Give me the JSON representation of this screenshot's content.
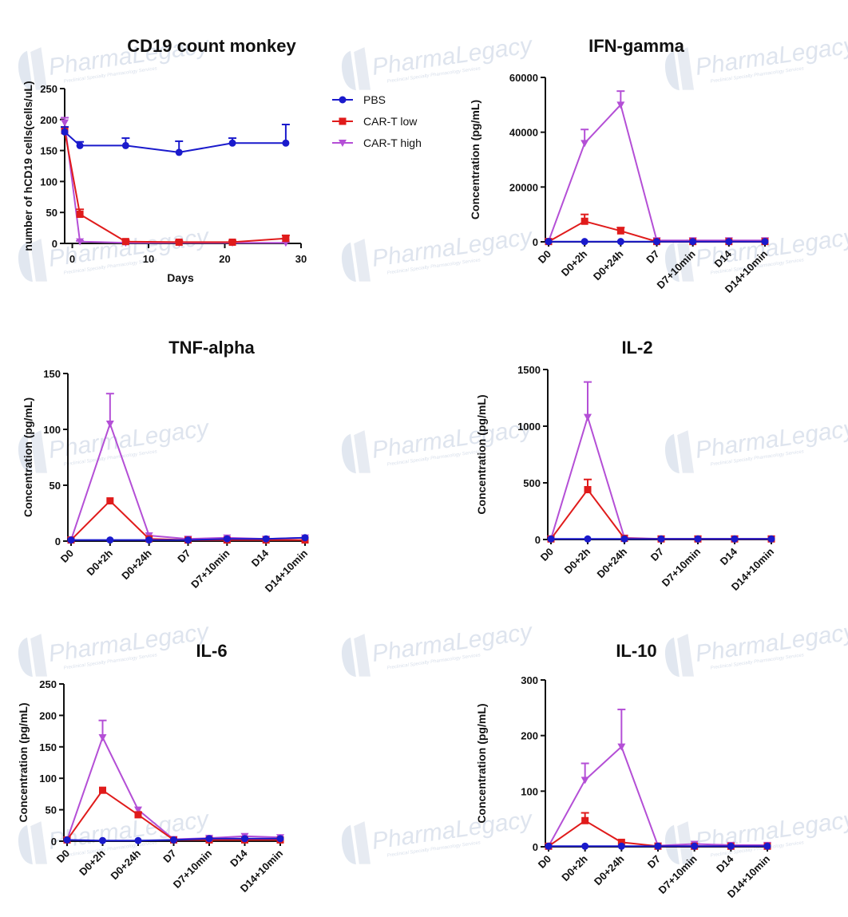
{
  "colors": {
    "PBS": "#1a1acc",
    "CAR-T low": "#e01b1b",
    "CAR-T high": "#b44fd6",
    "axis": "#111111",
    "watermark": "#c9d3e3"
  },
  "watermark": {
    "brand_a": "Pharma",
    "brand_b": "Legacy",
    "tagline": "Preclinical Specialty Pharmacology Services"
  },
  "legend": [
    "PBS",
    "CAR-T low",
    "CAR-T high"
  ],
  "chart_data": [
    {
      "type": "line",
      "title": "CD19 count monkey",
      "xlabel": "Days",
      "ylabel": "number of hCD19 cells(cells/uL)",
      "xlim": [
        -1,
        30
      ],
      "ylim": [
        0,
        250
      ],
      "xticks": [
        0,
        10,
        20,
        30
      ],
      "yticks": [
        0,
        50,
        100,
        150,
        200,
        250
      ],
      "x": [
        -1,
        1,
        7,
        14,
        21,
        28
      ],
      "series": [
        {
          "name": "PBS",
          "values": [
            180,
            158,
            158,
            147,
            162,
            162
          ],
          "err": [
            8,
            6,
            12,
            18,
            8,
            30
          ]
        },
        {
          "name": "CAR-T low",
          "values": [
            182,
            47,
            3,
            2,
            2,
            8
          ],
          "err": [
            6,
            8,
            2,
            2,
            2,
            5
          ]
        },
        {
          "name": "CAR-T high",
          "values": [
            195,
            3,
            1,
            1,
            1,
            1
          ],
          "err": [
            8,
            1,
            1,
            1,
            1,
            1
          ]
        }
      ]
    },
    {
      "type": "line",
      "title": "IFN-gamma",
      "ylabel": "Concentration (pg/mL)",
      "categories": [
        "D0",
        "D0+2h",
        "D0+24h",
        "D7",
        "D7+10min",
        "D14",
        "D14+10min"
      ],
      "ylim": [
        0,
        60000
      ],
      "yticks": [
        0,
        20000,
        40000,
        60000
      ],
      "series": [
        {
          "name": "PBS",
          "values": [
            100,
            100,
            100,
            100,
            100,
            100,
            100
          ],
          "err": [
            0,
            0,
            0,
            0,
            0,
            0,
            0
          ]
        },
        {
          "name": "CAR-T low",
          "values": [
            100,
            7500,
            4000,
            100,
            100,
            100,
            100
          ],
          "err": [
            0,
            2500,
            1200,
            0,
            0,
            0,
            0
          ]
        },
        {
          "name": "CAR-T high",
          "values": [
            200,
            36000,
            50000,
            500,
            500,
            500,
            500
          ],
          "err": [
            0,
            5000,
            5000,
            0,
            0,
            0,
            0
          ]
        }
      ]
    },
    {
      "type": "line",
      "title": "TNF-alpha",
      "ylabel": "Concentration (pg/mL)",
      "categories": [
        "D0",
        "D0+2h",
        "D0+24h",
        "D7",
        "D7+10min",
        "D14",
        "D14+10min"
      ],
      "ylim": [
        0,
        150
      ],
      "yticks": [
        0,
        50,
        100,
        150
      ],
      "series": [
        {
          "name": "PBS",
          "values": [
            1,
            1,
            1,
            1,
            2,
            2,
            3
          ],
          "err": [
            0,
            0,
            0,
            0,
            0,
            0,
            0
          ]
        },
        {
          "name": "CAR-T low",
          "values": [
            1,
            36,
            2,
            1,
            1,
            1,
            1
          ],
          "err": [
            0,
            0,
            0,
            0,
            0,
            0,
            0
          ]
        },
        {
          "name": "CAR-T high",
          "values": [
            1,
            105,
            5,
            2,
            3,
            2,
            3
          ],
          "err": [
            0,
            27,
            0,
            0,
            0,
            0,
            0
          ]
        }
      ]
    },
    {
      "type": "line",
      "title": "IL-2",
      "ylabel": "Concentration (pg/mL)",
      "categories": [
        "D0",
        "D0+2h",
        "D0+24h",
        "D7",
        "D7+10min",
        "D14",
        "D14+10min"
      ],
      "ylim": [
        0,
        1500
      ],
      "yticks": [
        0,
        500,
        1000,
        1500
      ],
      "series": [
        {
          "name": "PBS",
          "values": [
            5,
            5,
            5,
            5,
            5,
            5,
            5
          ],
          "err": [
            0,
            0,
            0,
            0,
            0,
            0,
            0
          ]
        },
        {
          "name": "CAR-T low",
          "values": [
            5,
            440,
            10,
            5,
            5,
            5,
            5
          ],
          "err": [
            0,
            90,
            0,
            0,
            0,
            0,
            0
          ]
        },
        {
          "name": "CAR-T high",
          "values": [
            5,
            1080,
            15,
            5,
            5,
            5,
            5
          ],
          "err": [
            0,
            310,
            0,
            0,
            0,
            0,
            0
          ]
        }
      ]
    },
    {
      "type": "line",
      "title": "IL-6",
      "ylabel": "Concentration (pg/mL)",
      "categories": [
        "D0",
        "D0+2h",
        "D0+24h",
        "D7",
        "D7+10min",
        "D14",
        "D14+10min"
      ],
      "ylim": [
        0,
        250
      ],
      "yticks": [
        0,
        50,
        100,
        150,
        200,
        250
      ],
      "series": [
        {
          "name": "PBS",
          "values": [
            2,
            1,
            1,
            2,
            4,
            4,
            4
          ],
          "err": [
            0,
            0,
            0,
            0,
            0,
            0,
            0
          ]
        },
        {
          "name": "CAR-T low",
          "values": [
            2,
            81,
            42,
            2,
            2,
            2,
            2
          ],
          "err": [
            0,
            0,
            4,
            0,
            0,
            0,
            0
          ]
        },
        {
          "name": "CAR-T high",
          "values": [
            2,
            165,
            50,
            3,
            5,
            8,
            6
          ],
          "err": [
            0,
            27,
            0,
            0,
            0,
            0,
            0
          ]
        }
      ]
    },
    {
      "type": "line",
      "title": "IL-10",
      "ylabel": "Concentration (pg/mL)",
      "categories": [
        "D0",
        "D0+2h",
        "D0+24h",
        "D7",
        "D7+10min",
        "D14",
        "D14+10min"
      ],
      "ylim": [
        0,
        300
      ],
      "yticks": [
        0,
        100,
        200,
        300
      ],
      "series": [
        {
          "name": "PBS",
          "values": [
            1,
            1,
            1,
            1,
            1,
            1,
            1
          ],
          "err": [
            0,
            0,
            0,
            0,
            0,
            0,
            0
          ]
        },
        {
          "name": "CAR-T low",
          "values": [
            1,
            47,
            8,
            1,
            1,
            1,
            1
          ],
          "err": [
            0,
            14,
            0,
            0,
            0,
            0,
            0
          ]
        },
        {
          "name": "CAR-T high",
          "values": [
            1,
            120,
            180,
            2,
            5,
            3,
            3
          ],
          "err": [
            0,
            30,
            67,
            0,
            0,
            0,
            0
          ]
        }
      ]
    }
  ]
}
